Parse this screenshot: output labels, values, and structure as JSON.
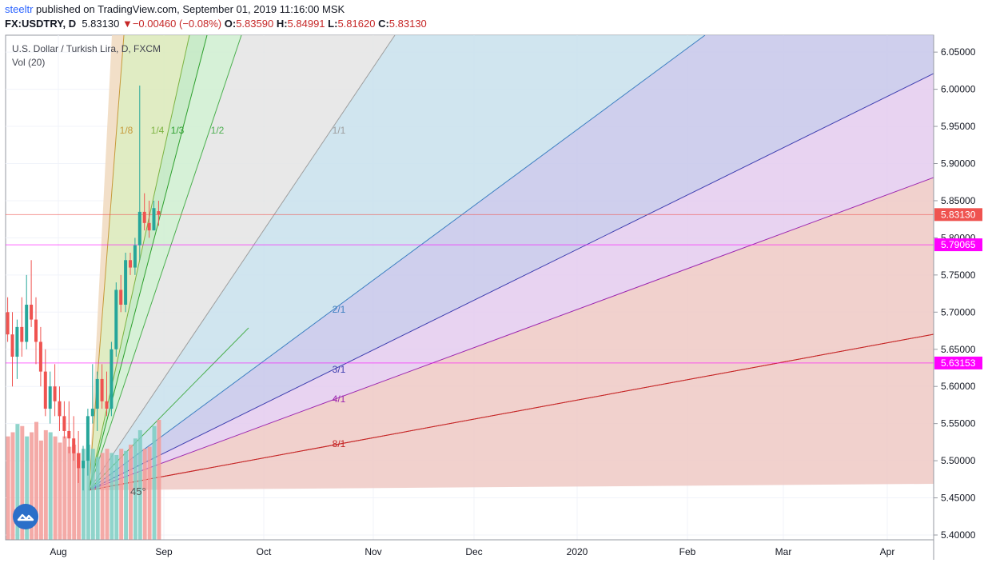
{
  "header": {
    "user": "steeltr",
    "published_text": "published on TradingView.com, September 01, 2019 11:16:00 MSK",
    "symbol": "FX:USDTRY, D",
    "last": "5.83130",
    "change": "−0.00460 (−0.08%)",
    "o_label": "O:",
    "o_value": "5.83590",
    "h_label": "H:",
    "h_value": "5.84991",
    "l_label": "L:",
    "l_value": "5.81620",
    "c_label": "C:",
    "c_value": "5.83130"
  },
  "legend": {
    "title": "U.S. Dollar / Turkish Lira, D, FXCM",
    "vol": "Vol (20)"
  },
  "chart_data": {
    "type": "candlestick",
    "y_range": [
      5.395,
      6.068
    ],
    "y_ticks": [
      "6.05000",
      "6.00000",
      "5.95000",
      "5.90000",
      "5.85000",
      "5.80000",
      "5.75000",
      "5.70000",
      "5.65000",
      "5.60000",
      "5.55000",
      "5.50000",
      "5.45000",
      "5.40000"
    ],
    "x_ticks": [
      "Aug",
      "Sep",
      "Oct",
      "Nov",
      "Dec",
      "2020",
      "Feb",
      "Mar",
      "Apr"
    ],
    "price_labels": [
      {
        "value": "5.83130",
        "color": "#ef5350"
      },
      {
        "value": "5.79065",
        "color": "#ff00ff"
      },
      {
        "value": "5.63153",
        "color": "#ff00ff"
      }
    ],
    "gann_fan": {
      "origin": "2019-08-13",
      "levels": [
        {
          "label": "1/8",
          "color": "#c69a3a"
        },
        {
          "label": "1/4",
          "color": "#7cb342"
        },
        {
          "label": "1/3",
          "color": "#2ea02e"
        },
        {
          "label": "1/2",
          "color": "#4caf50"
        },
        {
          "label": "1/1",
          "color": "#9e9e9e"
        },
        {
          "label": "2/1",
          "color": "#3d7fc1"
        },
        {
          "label": "3/1",
          "color": "#3f3fb0"
        },
        {
          "label": "4/1",
          "color": "#9c27b0"
        },
        {
          "label": "8/1",
          "color": "#c62828"
        }
      ],
      "angle_label": "45°"
    },
    "candles": [
      {
        "o": 5.7,
        "h": 5.72,
        "l": 5.66,
        "c": 5.67
      },
      {
        "o": 5.67,
        "h": 5.7,
        "l": 5.6,
        "c": 5.64
      },
      {
        "o": 5.64,
        "h": 5.69,
        "l": 5.61,
        "c": 5.68
      },
      {
        "o": 5.68,
        "h": 5.72,
        "l": 5.64,
        "c": 5.66
      },
      {
        "o": 5.66,
        "h": 5.75,
        "l": 5.65,
        "c": 5.71
      },
      {
        "o": 5.71,
        "h": 5.77,
        "l": 5.68,
        "c": 5.69
      },
      {
        "o": 5.69,
        "h": 5.72,
        "l": 5.63,
        "c": 5.66
      },
      {
        "o": 5.66,
        "h": 5.68,
        "l": 5.6,
        "c": 5.62
      },
      {
        "o": 5.62,
        "h": 5.65,
        "l": 5.56,
        "c": 5.57
      },
      {
        "o": 5.57,
        "h": 5.62,
        "l": 5.55,
        "c": 5.6
      },
      {
        "o": 5.6,
        "h": 5.63,
        "l": 5.56,
        "c": 5.58
      },
      {
        "o": 5.58,
        "h": 5.6,
        "l": 5.54,
        "c": 5.56
      },
      {
        "o": 5.56,
        "h": 5.58,
        "l": 5.53,
        "c": 5.54
      },
      {
        "o": 5.54,
        "h": 5.58,
        "l": 5.51,
        "c": 5.53
      },
      {
        "o": 5.53,
        "h": 5.56,
        "l": 5.5,
        "c": 5.51
      },
      {
        "o": 5.51,
        "h": 5.54,
        "l": 5.47,
        "c": 5.49
      },
      {
        "o": 5.49,
        "h": 5.52,
        "l": 5.46,
        "c": 5.5
      },
      {
        "o": 5.5,
        "h": 5.57,
        "l": 5.48,
        "c": 5.56
      },
      {
        "o": 5.56,
        "h": 5.63,
        "l": 5.55,
        "c": 5.57
      },
      {
        "o": 5.57,
        "h": 5.62,
        "l": 5.54,
        "c": 5.61
      },
      {
        "o": 5.61,
        "h": 5.63,
        "l": 5.57,
        "c": 5.58
      },
      {
        "o": 5.58,
        "h": 5.62,
        "l": 5.56,
        "c": 5.57
      },
      {
        "o": 5.57,
        "h": 5.66,
        "l": 5.56,
        "c": 5.65
      },
      {
        "o": 5.65,
        "h": 5.74,
        "l": 5.64,
        "c": 5.73
      },
      {
        "o": 5.73,
        "h": 5.75,
        "l": 5.7,
        "c": 5.71
      },
      {
        "o": 5.71,
        "h": 5.78,
        "l": 5.7,
        "c": 5.77
      },
      {
        "o": 5.77,
        "h": 5.78,
        "l": 5.75,
        "c": 5.76
      },
      {
        "o": 5.76,
        "h": 5.8,
        "l": 5.75,
        "c": 5.79
      },
      {
        "o": 5.79,
        "h": 6.005,
        "l": 5.77,
        "c": 5.835
      },
      {
        "o": 5.835,
        "h": 5.86,
        "l": 5.81,
        "c": 5.82
      },
      {
        "o": 5.82,
        "h": 5.85,
        "l": 5.8,
        "c": 5.81
      },
      {
        "o": 5.81,
        "h": 5.85,
        "l": 5.81,
        "c": 5.84
      },
      {
        "o": 5.8359,
        "h": 5.84991,
        "l": 5.8162,
        "c": 5.8313
      }
    ],
    "volumes": [
      0.5,
      0.52,
      0.56,
      0.55,
      0.5,
      0.52,
      0.57,
      0.48,
      0.53,
      0.52,
      0.5,
      0.47,
      0.5,
      0.45,
      0.46,
      0.42,
      0.44,
      0.46,
      0.44,
      0.4,
      0.42,
      0.44,
      0.42,
      0.41,
      0.44,
      0.43,
      0.46,
      0.49,
      0.53,
      0.44,
      0.45,
      0.55,
      0.58
    ]
  }
}
